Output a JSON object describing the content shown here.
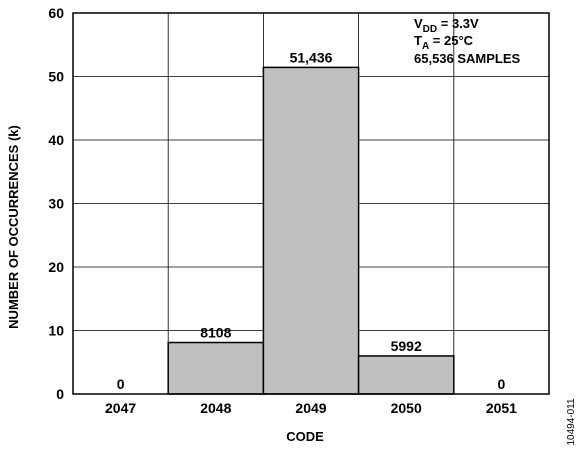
{
  "chart_data": {
    "type": "bar",
    "xlabel": "CODE",
    "ylabel": "NUMBER OF OCCURRENCES (k)",
    "categories": [
      "2047",
      "2048",
      "2049",
      "2050",
      "2051"
    ],
    "values": [
      0,
      8.108,
      51.436,
      5.992,
      0
    ],
    "data_labels": [
      "0",
      "8108",
      "51,436",
      "5992",
      "0"
    ],
    "ylim": [
      0,
      60
    ],
    "yticks": [
      "0",
      "10",
      "20",
      "30",
      "40",
      "50",
      "60"
    ],
    "grid": true,
    "bar_color": "#c0c0c0",
    "annotations": {
      "line1_main": "V",
      "line1_sub": "DD",
      "line1_rest": " = 3.3V",
      "line2_main": "T",
      "line2_sub": "A",
      "line2_rest": " = 25°C",
      "line3": "65,536 SAMPLES"
    },
    "figure_id": "10494-011"
  }
}
